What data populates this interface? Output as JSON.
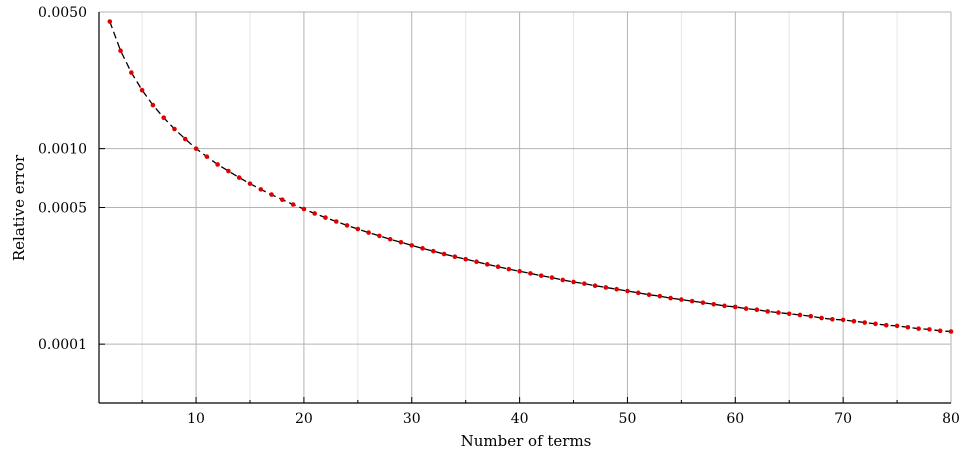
{
  "chart_data": {
    "type": "line",
    "xlabel": "Number of terms",
    "ylabel": "Relative error",
    "x_scale": "linear",
    "y_scale": "log",
    "xlim": [
      1,
      80
    ],
    "ylim": [
      5e-05,
      0.005
    ],
    "x_ticks": [
      10,
      20,
      30,
      40,
      50,
      60,
      70,
      80
    ],
    "y_ticks": [
      0.0001,
      0.0005,
      0.001,
      0.005
    ],
    "y_tick_labels": [
      "0.0001",
      "0.0005",
      "0.0010",
      "0.0050"
    ],
    "grid": true,
    "legend": "none",
    "series": [
      {
        "style": "dashed-line-with-markers",
        "line_color": "#000000",
        "marker_color": "#e00000",
        "x": [
          2,
          3,
          4,
          5,
          6,
          7,
          8,
          9,
          10,
          11,
          12,
          13,
          14,
          15,
          16,
          17,
          18,
          19,
          20,
          21,
          22,
          23,
          24,
          25,
          26,
          27,
          28,
          29,
          30,
          31,
          32,
          33,
          34,
          35,
          36,
          37,
          38,
          39,
          40,
          41,
          42,
          43,
          44,
          45,
          46,
          47,
          48,
          49,
          50,
          51,
          52,
          53,
          54,
          55,
          56,
          57,
          58,
          59,
          60,
          61,
          62,
          63,
          64,
          65,
          66,
          67,
          68,
          69,
          70,
          71,
          72,
          73,
          74,
          75,
          76,
          77,
          78,
          79,
          80
        ],
        "y": [
          0.00447,
          0.00317,
          0.00245,
          0.00199,
          0.00167,
          0.00144,
          0.00126,
          0.00112,
          0.001,
          0.00091,
          0.00083,
          0.000768,
          0.000711,
          0.000662,
          0.000619,
          0.000582,
          0.000548,
          0.000518,
          0.000491,
          0.000466,
          0.000444,
          0.000424,
          0.000405,
          0.000388,
          0.000372,
          0.000358,
          0.000344,
          0.000332,
          0.00032,
          0.000309,
          0.000299,
          0.000289,
          0.00028,
          0.000272,
          0.000264,
          0.000256,
          0.000249,
          0.000242,
          0.000236,
          0.00023,
          0.000224,
          0.000219,
          0.000213,
          0.000208,
          0.000204,
          0.000199,
          0.000195,
          0.000191,
          0.000187,
          0.000183,
          0.000179,
          0.000176,
          0.000172,
          0.000169,
          0.000166,
          0.000163,
          0.00016,
          0.000157,
          0.000155,
          0.000152,
          0.00015,
          0.000147,
          0.000145,
          0.000143,
          0.000141,
          0.000139,
          0.000136,
          0.000134,
          0.000133,
          0.000131,
          0.000129,
          0.000127,
          0.000125,
          0.000124,
          0.000122,
          0.00012,
          0.000119,
          0.000117,
          0.000116
        ]
      }
    ]
  }
}
